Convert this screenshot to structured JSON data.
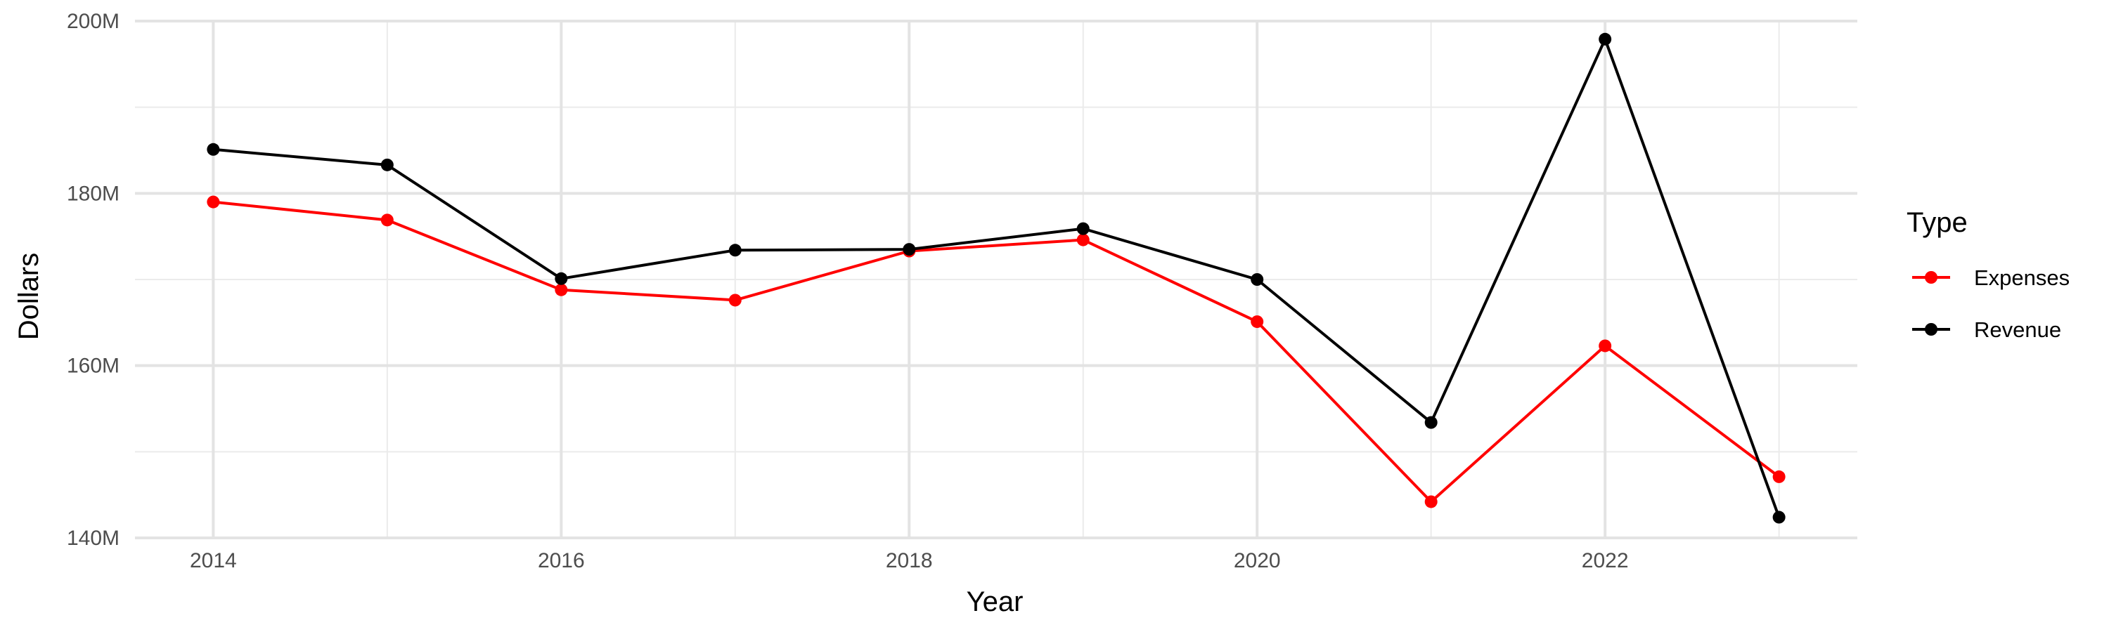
{
  "chart_data": {
    "type": "line",
    "xlabel": "Year",
    "ylabel": "Dollars",
    "x": [
      2014,
      2015,
      2016,
      2017,
      2018,
      2019,
      2020,
      2021,
      2022,
      2023
    ],
    "xlim": [
      2013.55,
      2023.45
    ],
    "xticks": [
      2014,
      2016,
      2018,
      2020,
      2022
    ],
    "xtick_labels": [
      "2014",
      "2016",
      "2018",
      "2020",
      "2022"
    ],
    "ylim": [
      140,
      200
    ],
    "yticks": [
      140,
      160,
      180,
      200
    ],
    "ytick_labels": [
      "140M",
      "160M",
      "180M",
      "200M"
    ],
    "grid": true,
    "legend": {
      "title": "Type",
      "position": "right",
      "entries": [
        "Expenses",
        "Revenue"
      ]
    },
    "series": [
      {
        "name": "Expenses",
        "color": "#ff0000",
        "values": [
          179.0,
          176.9,
          168.8,
          167.6,
          173.3,
          174.6,
          165.1,
          144.2,
          162.3,
          147.1
        ]
      },
      {
        "name": "Revenue",
        "color": "#000000",
        "values": [
          185.1,
          183.3,
          170.1,
          173.4,
          173.5,
          175.9,
          170.0,
          153.4,
          197.9,
          142.4
        ]
      }
    ]
  }
}
